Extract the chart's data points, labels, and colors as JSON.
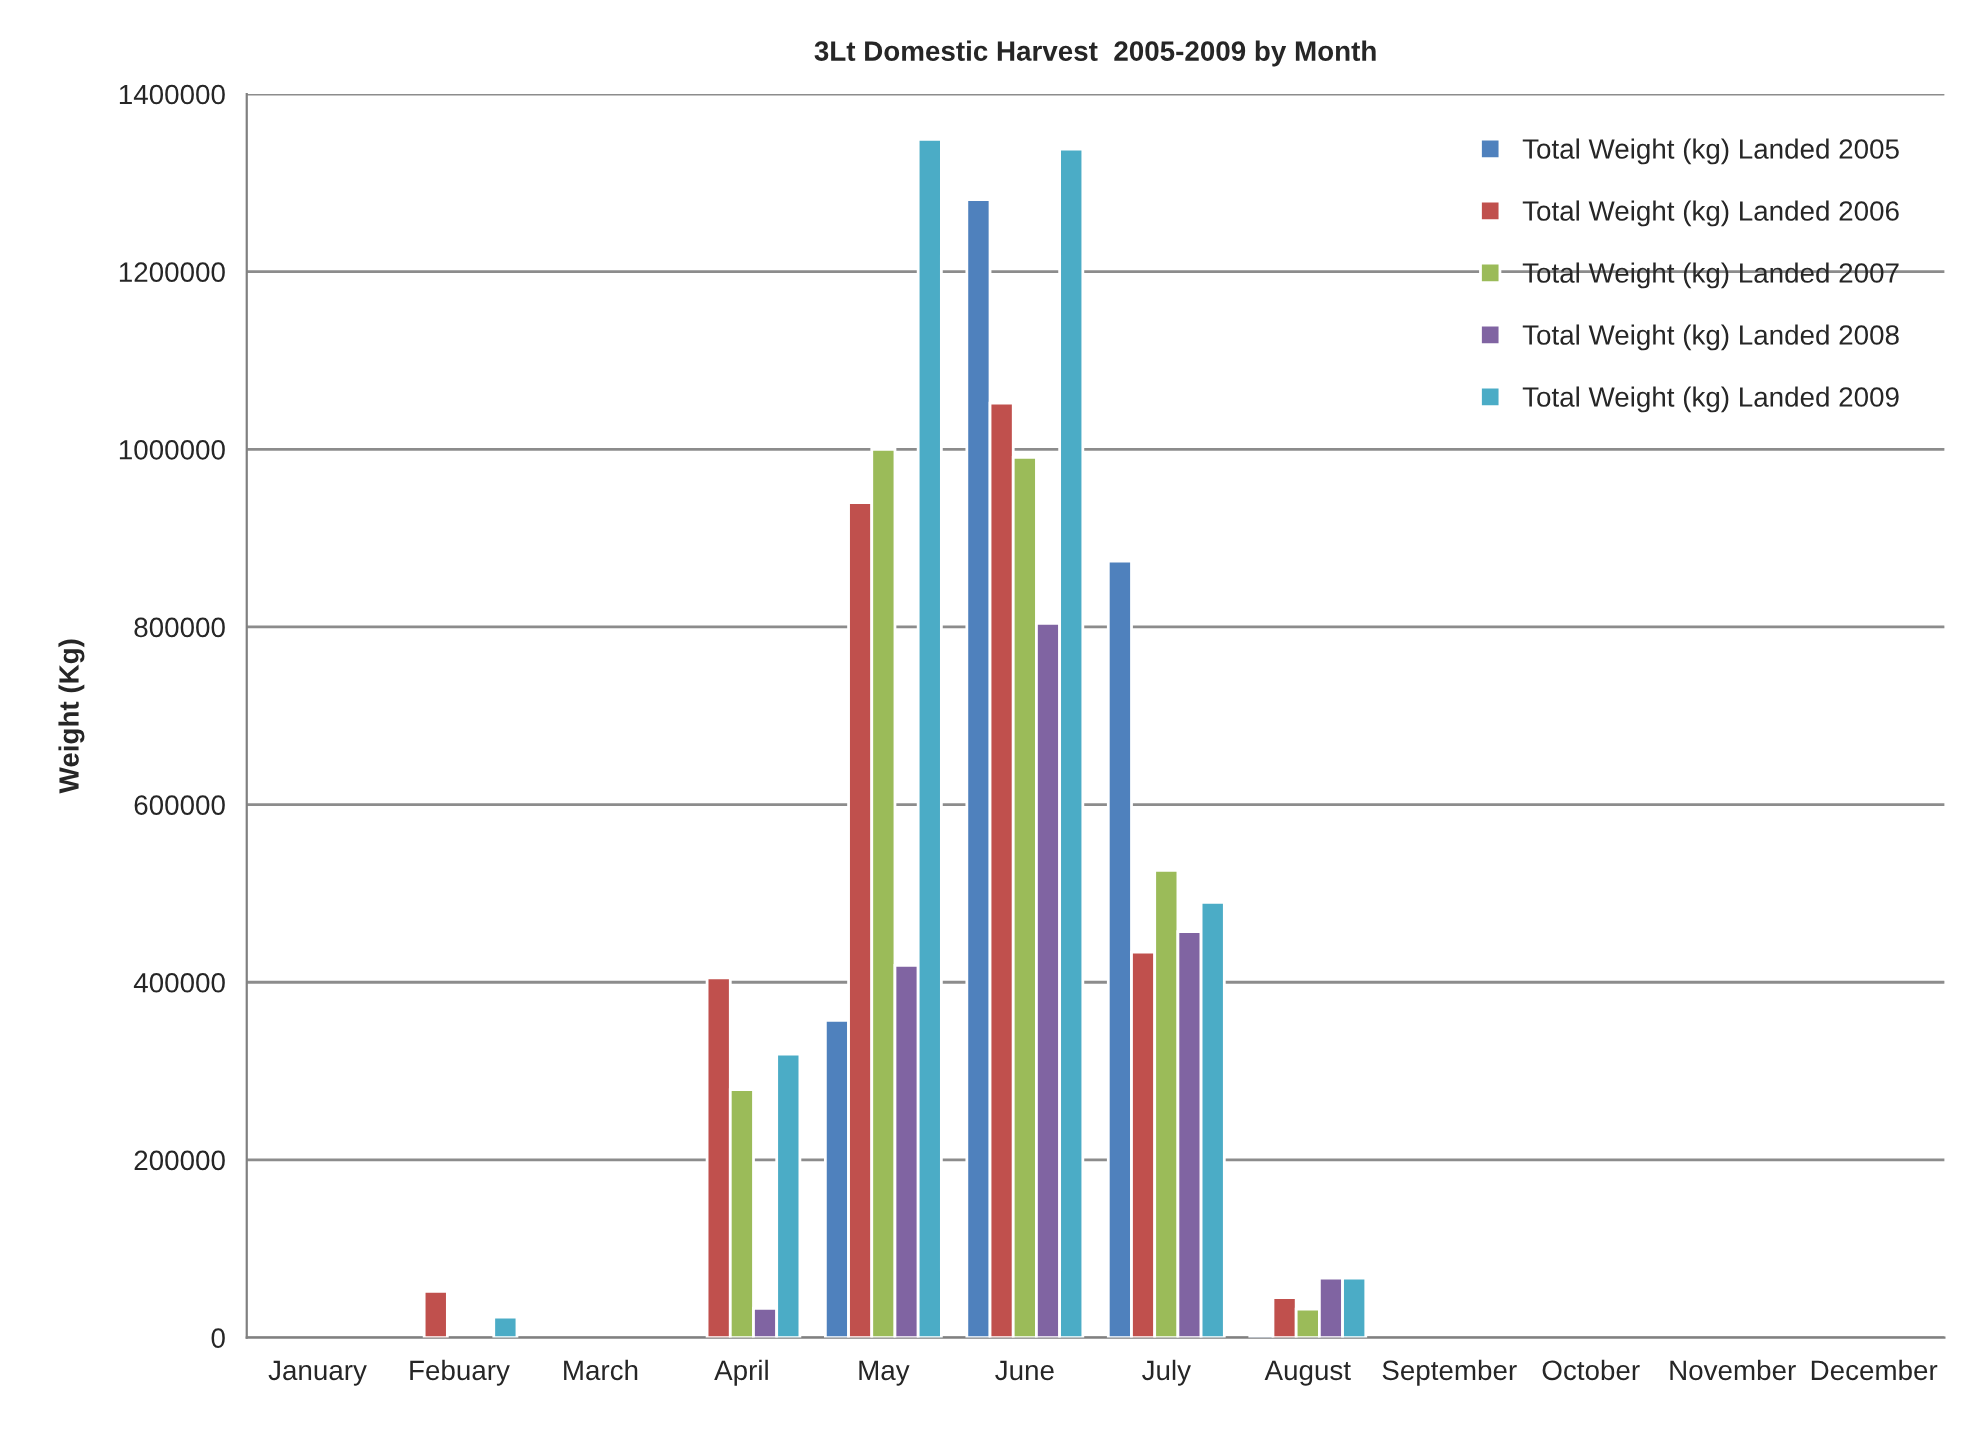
{
  "chart_data": {
    "type": "bar",
    "title": "3Lt Domestic Harvest  2005-2009 by Month",
    "ylabel": "Weight (Kg)",
    "categories": [
      "January",
      "Febuary",
      "March",
      "April",
      "May",
      "June",
      "July",
      "August",
      "September",
      "October",
      "November",
      "December"
    ],
    "series": [
      {
        "name": "Total Weight (kg) Landed 2005",
        "color": "#4f81bd",
        "values": [
          null,
          null,
          null,
          null,
          357000,
          1281000,
          874000,
          3000,
          null,
          null,
          null,
          null
        ]
      },
      {
        "name": "Total Weight (kg) Landed 2006",
        "color": "#c0504d",
        "values": [
          null,
          52000,
          null,
          405000,
          940000,
          1052000,
          434000,
          45000,
          null,
          null,
          null,
          null
        ]
      },
      {
        "name": "Total Weight (kg) Landed 2007",
        "color": "#9bbb59",
        "values": [
          null,
          null,
          null,
          279000,
          1000000,
          991000,
          526000,
          32000,
          null,
          null,
          null,
          null
        ]
      },
      {
        "name": "Total Weight (kg) Landed 2008",
        "color": "#8064a2",
        "values": [
          null,
          null,
          null,
          33000,
          419000,
          804000,
          457000,
          67000,
          null,
          null,
          null,
          null
        ]
      },
      {
        "name": "Total Weight (kg) Landed 2009",
        "color": "#4bacc6",
        "values": [
          null,
          23000,
          null,
          319000,
          1349000,
          1338000,
          490000,
          67000,
          null,
          null,
          null,
          null
        ]
      }
    ],
    "ylim": [
      0,
      1400000
    ],
    "yticks": [
      0,
      200000,
      400000,
      600000,
      800000,
      1000000,
      1200000,
      1400000
    ],
    "grid": "y",
    "legend": "top right"
  }
}
